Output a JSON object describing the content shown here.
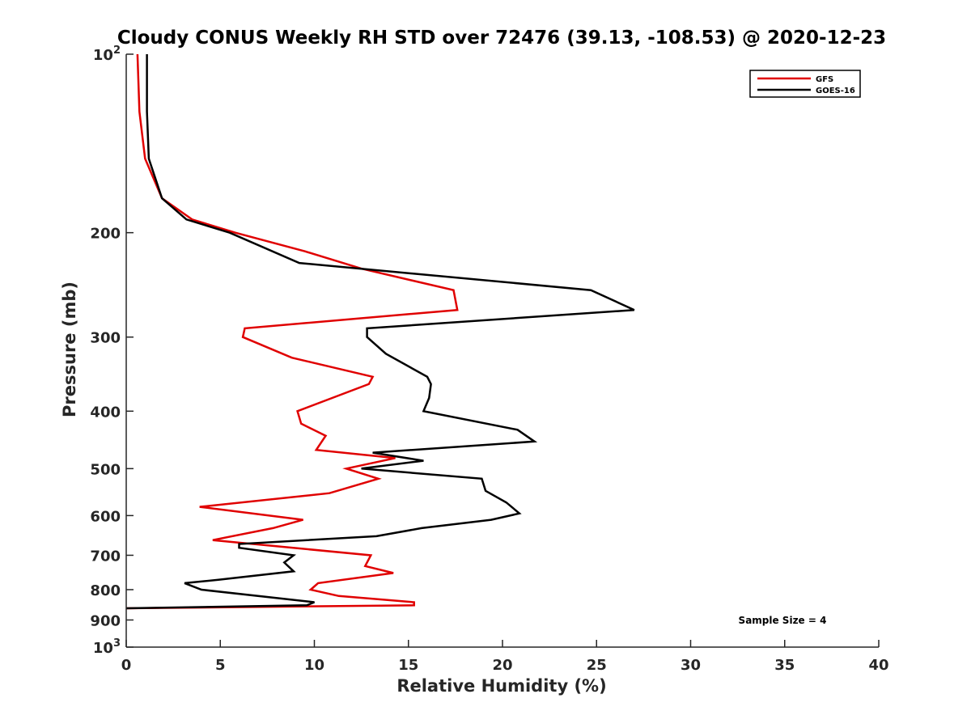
{
  "chart_data": {
    "type": "line",
    "title": "Cloudy CONUS Weekly RH STD over 72476 (39.13, -108.53) @ 2020-12-23",
    "xlabel": "Relative Humidity (%)",
    "ylabel": "Pressure (mb)",
    "xlim": [
      0,
      40
    ],
    "ylim": [
      100,
      1000
    ],
    "y_scale": "log",
    "y_reversed": true,
    "x_ticks": [
      0,
      5,
      10,
      15,
      20,
      25,
      30,
      35,
      40
    ],
    "y_ticks": [
      {
        "value": 100,
        "base": "10",
        "exp": "2"
      },
      {
        "value": 200,
        "label": "200"
      },
      {
        "value": 300,
        "label": "300"
      },
      {
        "value": 400,
        "label": "400"
      },
      {
        "value": 500,
        "label": "500"
      },
      {
        "value": 600,
        "label": "600"
      },
      {
        "value": 700,
        "label": "700"
      },
      {
        "value": 800,
        "label": "800"
      },
      {
        "value": 900,
        "label": "900"
      },
      {
        "value": 1000,
        "base": "10",
        "exp": "3"
      }
    ],
    "grid": false,
    "legend_position": "top-right",
    "annotation": "Sample Size = 4",
    "series": [
      {
        "name": "GFS",
        "color": "#e00000",
        "points": [
          [
            0.6,
            100
          ],
          [
            0.7,
            125
          ],
          [
            1.0,
            150
          ],
          [
            1.9,
            175
          ],
          [
            3.5,
            190
          ],
          [
            5.8,
            200
          ],
          [
            9.5,
            215
          ],
          [
            12.5,
            230
          ],
          [
            17.4,
            250
          ],
          [
            17.6,
            270
          ],
          [
            6.3,
            290
          ],
          [
            6.2,
            300
          ],
          [
            8.8,
            325
          ],
          [
            13.1,
            350
          ],
          [
            12.9,
            360
          ],
          [
            9.1,
            400
          ],
          [
            9.3,
            420
          ],
          [
            10.6,
            440
          ],
          [
            10.1,
            465
          ],
          [
            14.3,
            480
          ],
          [
            11.7,
            500
          ],
          [
            13.4,
            520
          ],
          [
            10.8,
            550
          ],
          [
            3.9,
            580
          ],
          [
            9.4,
            610
          ],
          [
            7.8,
            630
          ],
          [
            4.6,
            660
          ],
          [
            13.0,
            700
          ],
          [
            12.7,
            730
          ],
          [
            14.2,
            750
          ],
          [
            10.2,
            780
          ],
          [
            9.8,
            800
          ],
          [
            11.3,
            820
          ],
          [
            15.3,
            840
          ],
          [
            15.3,
            850
          ],
          [
            0.0,
            860
          ]
        ]
      },
      {
        "name": "GOES-16",
        "color": "#000000",
        "points": [
          [
            1.1,
            100
          ],
          [
            1.1,
            125
          ],
          [
            1.2,
            150
          ],
          [
            1.9,
            175
          ],
          [
            3.2,
            190
          ],
          [
            5.5,
            200
          ],
          [
            9.2,
            225
          ],
          [
            24.7,
            250
          ],
          [
            27.0,
            270
          ],
          [
            12.8,
            290
          ],
          [
            12.8,
            300
          ],
          [
            13.8,
            320
          ],
          [
            16.0,
            350
          ],
          [
            16.2,
            360
          ],
          [
            16.1,
            380
          ],
          [
            15.8,
            400
          ],
          [
            20.8,
            430
          ],
          [
            21.7,
            450
          ],
          [
            13.1,
            470
          ],
          [
            15.8,
            485
          ],
          [
            12.5,
            500
          ],
          [
            18.9,
            520
          ],
          [
            19.1,
            545
          ],
          [
            20.2,
            570
          ],
          [
            20.9,
            595
          ],
          [
            19.4,
            610
          ],
          [
            15.7,
            630
          ],
          [
            13.3,
            650
          ],
          [
            6.0,
            670
          ],
          [
            6.0,
            680
          ],
          [
            8.9,
            700
          ],
          [
            8.4,
            720
          ],
          [
            8.9,
            745
          ],
          [
            4.9,
            770
          ],
          [
            3.1,
            780
          ],
          [
            4.0,
            800
          ],
          [
            10.0,
            840
          ],
          [
            9.6,
            850
          ],
          [
            0.0,
            860
          ]
        ]
      }
    ]
  }
}
